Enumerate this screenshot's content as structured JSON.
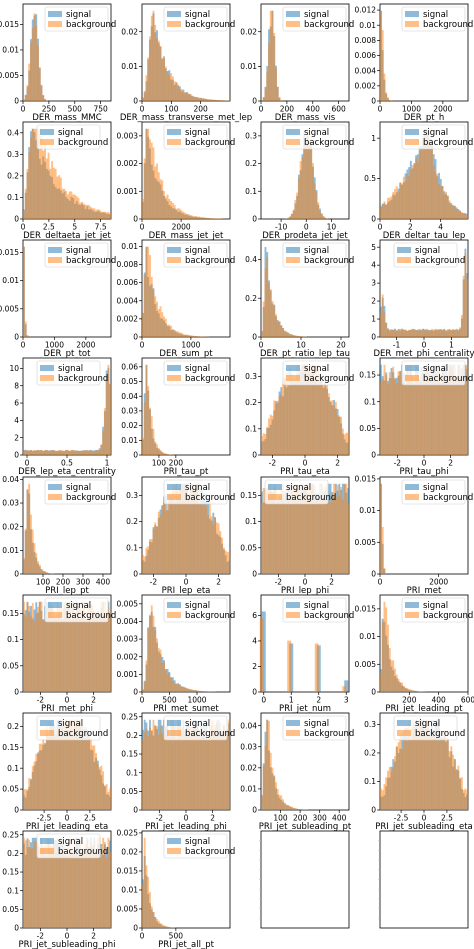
{
  "colors": {
    "signal": "#1f77b4",
    "background": "#ff7f0e"
  },
  "chart_data": [
    {
      "type": "bar",
      "xlabel": "DER_mass_MMC",
      "xticks": [
        0,
        250,
        500,
        750
      ],
      "xlim": [
        0,
        850
      ],
      "yticks": [
        0.0,
        0.005,
        0.01,
        0.015
      ],
      "ylim": [
        0,
        0.019
      ],
      "legend": [
        "signal",
        "background"
      ],
      "legend_position": "top-right",
      "shape": "peak",
      "peak": 0.13,
      "width": 0.06
    },
    {
      "type": "bar",
      "xlabel": "DER_mass_transverse_met_lep",
      "xticks": [
        0,
        100,
        200
      ],
      "xlim": [
        0,
        300
      ],
      "yticks": [
        0.0,
        0.01,
        0.02
      ],
      "ylim": [
        0,
        0.028
      ],
      "legend": [
        "signal",
        "background"
      ],
      "legend_position": "top-right",
      "shape": "skew",
      "peak": 0.12,
      "width": 0.1
    },
    {
      "type": "bar",
      "xlabel": "DER_mass_vis",
      "xticks": [
        0,
        200,
        400,
        600
      ],
      "xlim": [
        0,
        680
      ],
      "yticks": [
        0.0,
        0.01,
        0.02
      ],
      "ylim": [
        0,
        0.028
      ],
      "legend": [
        "signal",
        "background"
      ],
      "legend_position": "top-right",
      "shape": "peak",
      "peak": 0.12,
      "width": 0.05
    },
    {
      "type": "bar",
      "xlabel": "DER_pt_h",
      "xticks": [
        0,
        1000,
        2000
      ],
      "xlim": [
        0,
        2800
      ],
      "yticks": [
        0.0,
        0.002,
        0.004,
        0.006,
        0.008,
        0.01,
        0.012
      ],
      "ylim": [
        0,
        0.0128
      ],
      "legend": [
        "signal",
        "background"
      ],
      "legend_position": "top-right",
      "shape": "spike",
      "peak": 0.02,
      "width": 0.02
    },
    {
      "type": "bar",
      "xlabel": "DER_deltaeta_jet_jet",
      "xticks": [
        0.0,
        2.5,
        5.0,
        7.5
      ],
      "xlim": [
        0,
        8.5
      ],
      "yticks": [
        0.0,
        0.1,
        0.2,
        0.3,
        0.4
      ],
      "ylim": [
        0,
        0.45
      ],
      "legend": [
        "signal",
        "background"
      ],
      "legend_position": "top-center",
      "shape": "decay",
      "peak": 0.1,
      "width": 0.3
    },
    {
      "type": "bar",
      "xlabel": "DER_mass_jet_jet",
      "xticks": [
        0,
        2000
      ],
      "xlim": [
        0,
        4500
      ],
      "yticks": [
        0.0,
        0.001,
        0.002,
        0.003
      ],
      "ylim": [
        0,
        0.0035
      ],
      "legend": [
        "signal",
        "background"
      ],
      "legend_position": "top-right",
      "shape": "decay",
      "peak": 0.05,
      "width": 0.15
    },
    {
      "type": "bar",
      "xlabel": "DER_prodeta_jet_jet",
      "xticks": [
        -10,
        0,
        10
      ],
      "xlim": [
        -18,
        17
      ],
      "yticks": [
        0.0,
        0.1,
        0.2,
        0.3
      ],
      "ylim": [
        0,
        0.35
      ],
      "legend": [
        "signal",
        "background"
      ],
      "legend_position": "top-right",
      "shape": "peak",
      "peak": 0.52,
      "width": 0.1
    },
    {
      "type": "bar",
      "xlabel": "DER_deltar_tau_lep",
      "xticks": [
        0,
        2,
        4
      ],
      "xlim": [
        0,
        5.8
      ],
      "yticks": [
        0.0,
        0.5,
        1.0
      ],
      "ylim": [
        0,
        1.2
      ],
      "legend": [
        "signal",
        "background"
      ],
      "legend_position": "top-right",
      "shape": "rise",
      "peak": 0.55,
      "width": 0.15
    },
    {
      "type": "bar",
      "xlabel": "DER_pt_tot",
      "xticks": [
        0,
        1000,
        2000
      ],
      "xlim": [
        0,
        2800
      ],
      "yticks": [
        0.0,
        0.005,
        0.01,
        0.015
      ],
      "ylim": [
        0,
        0.0172
      ],
      "legend": [
        "signal",
        "background"
      ],
      "legend_position": "top-right",
      "shape": "spike",
      "peak": 0.01,
      "width": 0.01
    },
    {
      "type": "bar",
      "xlabel": "DER_sum_pt",
      "xticks": [
        0,
        1000
      ],
      "xlim": [
        0,
        1800
      ],
      "yticks": [
        0.0,
        0.002,
        0.004,
        0.006,
        0.008,
        0.01
      ],
      "ylim": [
        0,
        0.0107
      ],
      "legend": [
        "signal",
        "background"
      ],
      "legend_position": "top-right",
      "shape": "decay",
      "peak": 0.04,
      "width": 0.12
    },
    {
      "type": "bar",
      "xlabel": "DER_pt_ratio_lep_tau",
      "xticks": [
        0,
        10,
        20
      ],
      "xlim": [
        0,
        22
      ],
      "yticks": [
        0.0,
        0.2,
        0.4
      ],
      "ylim": [
        0,
        0.5
      ],
      "legend": [
        "signal",
        "background"
      ],
      "legend_position": "top-right",
      "shape": "skew",
      "peak": 0.06,
      "width": 0.05
    },
    {
      "type": "bar",
      "xlabel": "DER_met_phi_centrality",
      "xticks": [
        -1,
        0,
        1
      ],
      "xlim": [
        -1.6,
        1.6
      ],
      "yticks": [
        0,
        1,
        2,
        3,
        4,
        5
      ],
      "ylim": [
        0,
        5.4
      ],
      "legend": [
        "signal",
        "background"
      ],
      "legend_position": "top-center",
      "shape": "bimodal",
      "peak": 0.5,
      "width": 0.05
    },
    {
      "type": "bar",
      "xlabel": "DER_lep_eta_centrality",
      "xticks": [
        0.0,
        0.5,
        1.0
      ],
      "xlim": [
        -0.05,
        1.05
      ],
      "yticks": [
        0,
        2,
        4,
        6,
        8,
        10
      ],
      "ylim": [
        0,
        11.2
      ],
      "legend": [
        "signal",
        "background"
      ],
      "legend_position": "top-center",
      "shape": "edge",
      "peak": 0.97,
      "width": 0.05
    },
    {
      "type": "bar",
      "xlabel": "PRI_tau_pt",
      "xticks": [
        100,
        200
      ],
      "xlim": [
        0,
        520
      ],
      "yticks": [
        0.0,
        0.01,
        0.02,
        0.03,
        0.04,
        0.05,
        0.06
      ],
      "ylim": [
        0,
        0.066
      ],
      "legend": [
        "signal",
        "background"
      ],
      "legend_position": "top-right",
      "shape": "decay",
      "peak": 0.05,
      "width": 0.05
    },
    {
      "type": "bar",
      "xlabel": "PRI_tau_eta",
      "xticks": [
        -2,
        0,
        2
      ],
      "xlim": [
        -2.7,
        2.7
      ],
      "yticks": [
        0.0,
        0.1,
        0.2,
        0.3
      ],
      "ylim": [
        0,
        0.37
      ],
      "legend": [
        "signal",
        "background"
      ],
      "legend_position": "top-right",
      "shape": "dome",
      "peak": 0.5,
      "width": 0.3
    },
    {
      "type": "bar",
      "xlabel": "PRI_tau_phi",
      "xticks": [
        -2,
        0,
        2
      ],
      "xlim": [
        -3.3,
        3.3
      ],
      "yticks": [
        0.0,
        0.05,
        0.1,
        0.15
      ],
      "ylim": [
        0,
        0.182
      ],
      "legend": [
        "signal",
        "background"
      ],
      "legend_position": "top-right",
      "shape": "flat",
      "peak": 0.5,
      "width": 0.5
    },
    {
      "type": "bar",
      "xlabel": "PRI_lep_pt",
      "xticks": [
        100,
        200,
        300,
        400
      ],
      "xlim": [
        0,
        440
      ],
      "yticks": [
        0.0,
        0.01,
        0.02,
        0.03,
        0.04
      ],
      "ylim": [
        0,
        0.041
      ],
      "legend": [
        "signal",
        "background"
      ],
      "legend_position": "top-right",
      "shape": "decay",
      "peak": 0.06,
      "width": 0.05
    },
    {
      "type": "bar",
      "xlabel": "PRI_lep_eta",
      "xticks": [
        -2,
        0,
        2
      ],
      "xlim": [
        -2.7,
        2.7
      ],
      "yticks": [
        0.0,
        0.1,
        0.2,
        0.3
      ],
      "ylim": [
        0,
        0.37
      ],
      "legend": [
        "signal",
        "background"
      ],
      "legend_position": "top-right",
      "shape": "dome",
      "peak": 0.5,
      "width": 0.3
    },
    {
      "type": "bar",
      "xlabel": "PRI_lep_phi",
      "xticks": [
        -2,
        0,
        2
      ],
      "xlim": [
        -3.3,
        3.3
      ],
      "yticks": [
        0.0,
        0.05,
        0.1,
        0.15
      ],
      "ylim": [
        0,
        0.185
      ],
      "legend": [
        "signal",
        "background"
      ],
      "legend_position": "top-left",
      "shape": "flat",
      "peak": 0.5,
      "width": 0.5
    },
    {
      "type": "bar",
      "xlabel": "PRI_met",
      "xticks": [
        0,
        2000
      ],
      "xlim": [
        0,
        3000
      ],
      "yticks": [
        0.0,
        0.005,
        0.01,
        0.015
      ],
      "ylim": [
        0,
        0.0153
      ],
      "legend": [
        "signal",
        "background"
      ],
      "legend_position": "top-right",
      "shape": "spike",
      "peak": 0.02,
      "width": 0.01
    },
    {
      "type": "bar",
      "xlabel": "PRI_met_phi",
      "xticks": [
        -2,
        0,
        2
      ],
      "xlim": [
        -3.3,
        3.3
      ],
      "yticks": [
        0.0,
        0.05,
        0.1,
        0.15
      ],
      "ylim": [
        0,
        0.185
      ],
      "legend": [
        "signal",
        "background"
      ],
      "legend_position": "top-right",
      "shape": "flat",
      "peak": 0.5,
      "width": 0.5
    },
    {
      "type": "bar",
      "xlabel": "PRI_met_sumet",
      "xticks": [
        0,
        500,
        1000
      ],
      "xlim": [
        0,
        1600
      ],
      "yticks": [
        0.0,
        0.001,
        0.002,
        0.003,
        0.004,
        0.005
      ],
      "ylim": [
        0,
        0.0055
      ],
      "legend": [
        "signal",
        "background"
      ],
      "legend_position": "top-right",
      "shape": "skew",
      "peak": 0.1,
      "width": 0.08
    },
    {
      "type": "bar",
      "xlabel": "PRI_jet_num",
      "xticks": [
        0,
        1,
        2,
        3
      ],
      "xlim": [
        -0.1,
        3.1
      ],
      "yticks": [
        0,
        2,
        4,
        6
      ],
      "ylim": [
        0,
        7.6
      ],
      "legend": [
        "signal",
        "background"
      ],
      "legend_position": "top-right",
      "shape": "discrete",
      "peak": 0.5,
      "width": 0.5
    },
    {
      "type": "bar",
      "xlabel": "PRI_jet_leading_pt",
      "xticks": [
        200,
        400,
        600
      ],
      "xlim": [
        0,
        600
      ],
      "yticks": [
        0.0,
        0.005,
        0.01,
        0.015
      ],
      "ylim": [
        0,
        0.0175
      ],
      "legend": [
        "signal",
        "background"
      ],
      "legend_position": "top-right",
      "shape": "decay",
      "peak": 0.04,
      "width": 0.08
    },
    {
      "type": "bar",
      "xlabel": "PRI_jet_leading_eta",
      "xticks": [
        -2.5,
        0.0,
        2.5
      ],
      "xlim": [
        -4.8,
        4.8
      ],
      "yticks": [
        0.0,
        0.05,
        0.1,
        0.15,
        0.2
      ],
      "ylim": [
        0,
        0.232
      ],
      "legend": [
        "signal",
        "background"
      ],
      "legend_position": "top-center",
      "shape": "dome",
      "peak": 0.5,
      "width": 0.25
    },
    {
      "type": "bar",
      "xlabel": "PRI_jet_leading_phi",
      "xticks": [
        -2,
        0,
        2
      ],
      "xlim": [
        -3.3,
        3.3
      ],
      "yticks": [
        0.0,
        0.05,
        0.1,
        0.15,
        0.2,
        0.25
      ],
      "ylim": [
        0,
        0.26
      ],
      "legend": [
        "signal",
        "background"
      ],
      "legend_position": "top-right",
      "shape": "flat",
      "peak": 0.5,
      "width": 0.5
    },
    {
      "type": "bar",
      "xlabel": "PRI_jet_subleading_pt",
      "xticks": [
        100,
        200,
        300,
        400
      ],
      "xlim": [
        0,
        450
      ],
      "yticks": [
        0.0,
        0.01,
        0.02,
        0.03,
        0.04
      ],
      "ylim": [
        0,
        0.046
      ],
      "legend": [
        "signal",
        "background"
      ],
      "legend_position": "top-right",
      "shape": "decay",
      "peak": 0.06,
      "width": 0.08
    },
    {
      "type": "bar",
      "xlabel": "PRI_jet_subleading_eta",
      "xticks": [
        -2.5,
        0.0,
        2.5
      ],
      "xlim": [
        -4.8,
        4.8
      ],
      "yticks": [
        0.0,
        0.1,
        0.2,
        0.3
      ],
      "ylim": [
        0,
        0.34
      ],
      "legend": [
        "signal",
        "background"
      ],
      "legend_position": "top-center",
      "shape": "dome",
      "peak": 0.5,
      "width": 0.25
    },
    {
      "type": "bar",
      "xlabel": "PRI_jet_subleading_phi",
      "xticks": [
        -2,
        0,
        2
      ],
      "xlim": [
        -3.3,
        3.3
      ],
      "yticks": [
        0.0,
        0.05,
        0.1,
        0.15,
        0.2,
        0.25
      ],
      "ylim": [
        0,
        0.26
      ],
      "legend": [
        "signal",
        "background"
      ],
      "legend_position": "top-center",
      "shape": "flat",
      "peak": 0.5,
      "width": 0.5
    },
    {
      "type": "bar",
      "xlabel": "PRI_jet_all_pt",
      "xticks": [
        0,
        500
      ],
      "xlim": [
        0,
        1300
      ],
      "yticks": [
        0.0,
        0.005,
        0.01,
        0.015,
        0.02,
        0.025
      ],
      "ylim": [
        0,
        0.0255
      ],
      "legend": [
        "signal",
        "background"
      ],
      "legend_position": "top-right",
      "shape": "decay",
      "peak": 0.02,
      "width": 0.06
    },
    {
      "type": "empty",
      "xlabel": "",
      "xticks": [],
      "yticks": []
    },
    {
      "type": "empty",
      "xlabel": "",
      "xticks": [],
      "yticks": []
    }
  ]
}
